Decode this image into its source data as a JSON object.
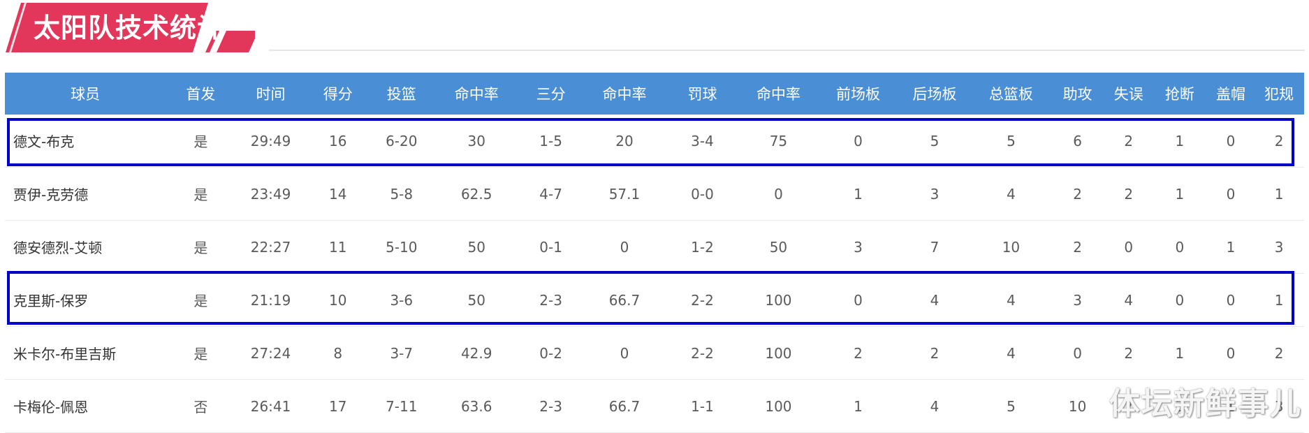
{
  "banner": {
    "title": "太阳队技术统计"
  },
  "table": {
    "headers": [
      "球员",
      "首发",
      "时间",
      "得分",
      "投篮",
      "命中率",
      "三分",
      "命中率",
      "罚球",
      "命中率",
      "前场板",
      "后场板",
      "总篮板",
      "助攻",
      "失误",
      "抢断",
      "盖帽",
      "犯规"
    ],
    "rows": [
      [
        "德文-布克",
        "是",
        "29:49",
        "16",
        "6-20",
        "30",
        "1-5",
        "20",
        "3-4",
        "75",
        "0",
        "5",
        "5",
        "6",
        "2",
        "1",
        "0",
        "2"
      ],
      [
        "贾伊-克劳德",
        "是",
        "23:49",
        "14",
        "5-8",
        "62.5",
        "4-7",
        "57.1",
        "0-0",
        "0",
        "1",
        "3",
        "4",
        "2",
        "2",
        "1",
        "0",
        "1"
      ],
      [
        "德安德烈-艾顿",
        "是",
        "22:27",
        "11",
        "5-10",
        "50",
        "0-1",
        "0",
        "1-2",
        "50",
        "3",
        "7",
        "10",
        "2",
        "0",
        "0",
        "1",
        "3"
      ],
      [
        "克里斯-保罗",
        "是",
        "21:19",
        "10",
        "3-6",
        "50",
        "2-3",
        "66.7",
        "2-2",
        "100",
        "0",
        "4",
        "4",
        "3",
        "4",
        "0",
        "0",
        "1"
      ],
      [
        "米卡尔-布里吉斯",
        "是",
        "27:24",
        "8",
        "3-7",
        "42.9",
        "0-2",
        "0",
        "2-2",
        "100",
        "2",
        "2",
        "4",
        "0",
        "2",
        "1",
        "0",
        "2"
      ],
      [
        "卡梅伦-佩恩",
        "否",
        "26:41",
        "17",
        "7-11",
        "63.6",
        "2-3",
        "66.7",
        "1-1",
        "100",
        "1",
        "4",
        "5",
        "10",
        "2",
        "3",
        "1",
        "3"
      ]
    ]
  },
  "watermark": {
    "text": "体坛新鲜事儿"
  },
  "colors": {
    "banner_red": "#e2365a",
    "header_blue": "#4a8fd6",
    "highlight_blue": "#0000c8"
  }
}
